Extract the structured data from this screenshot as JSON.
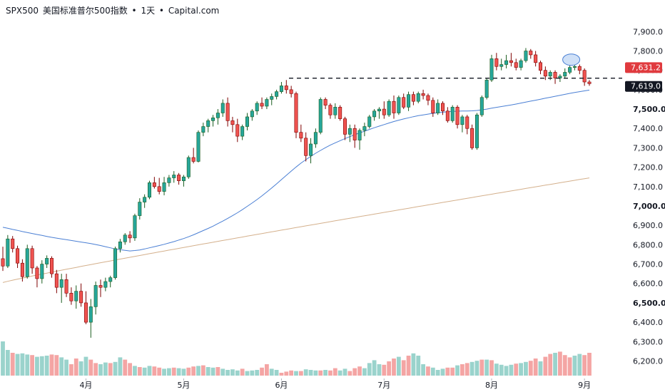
{
  "header": {
    "symbol": "SPX500",
    "name": "美国标准普尔500指数",
    "sep1": "•",
    "interval": "1天",
    "sep2": "•",
    "source": "Capital.com"
  },
  "colors": {
    "up": "#26a69a",
    "down": "#ef5350",
    "up_border": "#1b5e20",
    "down_border": "#7f0000",
    "up_vol": "#9ad3cc",
    "down_vol": "#f4a5a4",
    "ma50": "#4a7fd4",
    "ma200": "#d4b08c",
    "last_price_bg": "#e03a3e",
    "level_bg": "#131722",
    "marker": "#cfe0f7"
  },
  "chart_data": {
    "type": "candlestick",
    "price_axis": {
      "ticks": [
        "7,900.0",
        "7,800.0",
        "7,700.0",
        "7,600.0",
        "7,500.0",
        "7,400.0",
        "7,300.0",
        "7,200.0",
        "7,100.0",
        "7,000.0",
        "6,900.0",
        "6,800.0",
        "6,700.0",
        "6,600.0",
        "6,500.0",
        "6,400.0",
        "6,300.0",
        "6,200.0"
      ],
      "tick_values": [
        7900,
        7800,
        7700,
        7600,
        7500,
        7400,
        7300,
        7200,
        7100,
        7000,
        6900,
        6800,
        6700,
        6600,
        6500,
        6400,
        6300,
        6200
      ],
      "bold_ticks": [
        "7,500.0",
        "7,000.0",
        "6,500.0"
      ],
      "range": [
        6165,
        7960
      ]
    },
    "time_axis": {
      "labels": [
        "4月",
        "5月",
        "6月",
        "7月",
        "8月",
        "9月"
      ],
      "label_bar_index": [
        17,
        37,
        57,
        78,
        100,
        119
      ]
    },
    "last_price": {
      "label": "7,631.2",
      "value": 7631.2
    },
    "level_line": {
      "label": "7,619.0",
      "value": 7619
    },
    "marker_bar_index": 116,
    "candles": [
      [
        6728,
        6790,
        6665,
        6690
      ],
      [
        6690,
        6850,
        6680,
        6830
      ],
      [
        6830,
        6845,
        6760,
        6780
      ],
      [
        6780,
        6795,
        6680,
        6705
      ],
      [
        6705,
        6725,
        6610,
        6635
      ],
      [
        6635,
        6800,
        6625,
        6780
      ],
      [
        6780,
        6795,
        6650,
        6680
      ],
      [
        6680,
        6690,
        6580,
        6625
      ],
      [
        6625,
        6720,
        6600,
        6700
      ],
      [
        6700,
        6745,
        6680,
        6730
      ],
      [
        6730,
        6740,
        6630,
        6650
      ],
      [
        6650,
        6670,
        6550,
        6580
      ],
      [
        6580,
        6650,
        6500,
        6620
      ],
      [
        6620,
        6650,
        6530,
        6550
      ],
      [
        6550,
        6580,
        6490,
        6510
      ],
      [
        6510,
        6590,
        6470,
        6560
      ],
      [
        6560,
        6600,
        6480,
        6500
      ],
      [
        6500,
        6560,
        6390,
        6400
      ],
      [
        6400,
        6520,
        6320,
        6480
      ],
      [
        6480,
        6610,
        6440,
        6590
      ],
      [
        6590,
        6620,
        6530,
        6580
      ],
      [
        6580,
        6630,
        6560,
        6610
      ],
      [
        6610,
        6640,
        6580,
        6630
      ],
      [
        6630,
        6790,
        6620,
        6780
      ],
      [
        6780,
        6830,
        6760,
        6815
      ],
      [
        6815,
        6860,
        6800,
        6850
      ],
      [
        6850,
        6870,
        6810,
        6835
      ],
      [
        6835,
        6960,
        6820,
        6950
      ],
      [
        6950,
        7040,
        6930,
        7020
      ],
      [
        7020,
        7060,
        6990,
        7045
      ],
      [
        7045,
        7130,
        7035,
        7120
      ],
      [
        7120,
        7150,
        7090,
        7100
      ],
      [
        7100,
        7145,
        7060,
        7075
      ],
      [
        7075,
        7150,
        7055,
        7120
      ],
      [
        7120,
        7160,
        7100,
        7145
      ],
      [
        7145,
        7180,
        7120,
        7160
      ],
      [
        7160,
        7170,
        7110,
        7130
      ],
      [
        7130,
        7160,
        7100,
        7150
      ],
      [
        7150,
        7260,
        7140,
        7250
      ],
      [
        7250,
        7300,
        7220,
        7230
      ],
      [
        7230,
        7390,
        7225,
        7380
      ],
      [
        7380,
        7430,
        7360,
        7410
      ],
      [
        7410,
        7450,
        7380,
        7440
      ],
      [
        7440,
        7470,
        7410,
        7455
      ],
      [
        7455,
        7500,
        7420,
        7480
      ],
      [
        7480,
        7550,
        7460,
        7530
      ],
      [
        7530,
        7560,
        7410,
        7440
      ],
      [
        7440,
        7460,
        7380,
        7420
      ],
      [
        7420,
        7450,
        7330,
        7360
      ],
      [
        7360,
        7420,
        7340,
        7410
      ],
      [
        7410,
        7480,
        7390,
        7460
      ],
      [
        7460,
        7500,
        7440,
        7490
      ],
      [
        7490,
        7540,
        7470,
        7530
      ],
      [
        7530,
        7560,
        7500,
        7515
      ],
      [
        7515,
        7560,
        7500,
        7550
      ],
      [
        7550,
        7580,
        7520,
        7565
      ],
      [
        7565,
        7600,
        7550,
        7590
      ],
      [
        7590,
        7640,
        7580,
        7620
      ],
      [
        7620,
        7650,
        7580,
        7600
      ],
      [
        7600,
        7620,
        7560,
        7580
      ],
      [
        7580,
        7590,
        7350,
        7380
      ],
      [
        7380,
        7420,
        7330,
        7350
      ],
      [
        7350,
        7380,
        7230,
        7260
      ],
      [
        7260,
        7350,
        7220,
        7320
      ],
      [
        7320,
        7400,
        7300,
        7380
      ],
      [
        7380,
        7560,
        7370,
        7550
      ],
      [
        7550,
        7560,
        7500,
        7520
      ],
      [
        7520,
        7530,
        7450,
        7470
      ],
      [
        7470,
        7530,
        7450,
        7510
      ],
      [
        7510,
        7520,
        7440,
        7450
      ],
      [
        7450,
        7460,
        7340,
        7370
      ],
      [
        7370,
        7420,
        7330,
        7400
      ],
      [
        7400,
        7420,
        7300,
        7340
      ],
      [
        7340,
        7400,
        7290,
        7390
      ],
      [
        7390,
        7430,
        7360,
        7410
      ],
      [
        7410,
        7470,
        7400,
        7460
      ],
      [
        7460,
        7500,
        7440,
        7490
      ],
      [
        7490,
        7510,
        7450,
        7500
      ],
      [
        7500,
        7540,
        7450,
        7470
      ],
      [
        7470,
        7550,
        7460,
        7540
      ],
      [
        7540,
        7570,
        7450,
        7480
      ],
      [
        7480,
        7570,
        7470,
        7560
      ],
      [
        7560,
        7580,
        7500,
        7510
      ],
      [
        7510,
        7590,
        7490,
        7575
      ],
      [
        7575,
        7590,
        7520,
        7540
      ],
      [
        7540,
        7590,
        7530,
        7580
      ],
      [
        7580,
        7600,
        7550,
        7570
      ],
      [
        7570,
        7580,
        7520,
        7545
      ],
      [
        7545,
        7560,
        7460,
        7480
      ],
      [
        7480,
        7550,
        7470,
        7530
      ],
      [
        7530,
        7540,
        7470,
        7490
      ],
      [
        7490,
        7510,
        7430,
        7440
      ],
      [
        7440,
        7520,
        7430,
        7510
      ],
      [
        7510,
        7520,
        7400,
        7420
      ],
      [
        7420,
        7470,
        7380,
        7460
      ],
      [
        7460,
        7470,
        7370,
        7400
      ],
      [
        7400,
        7420,
        7290,
        7300
      ],
      [
        7300,
        7480,
        7290,
        7470
      ],
      [
        7470,
        7570,
        7460,
        7560
      ],
      [
        7560,
        7660,
        7550,
        7650
      ],
      [
        7650,
        7780,
        7640,
        7760
      ],
      [
        7760,
        7790,
        7700,
        7720
      ],
      [
        7720,
        7760,
        7700,
        7730
      ],
      [
        7730,
        7780,
        7710,
        7750
      ],
      [
        7750,
        7790,
        7720,
        7740
      ],
      [
        7740,
        7760,
        7700,
        7715
      ],
      [
        7715,
        7760,
        7700,
        7750
      ],
      [
        7750,
        7815,
        7740,
        7800
      ],
      [
        7800,
        7810,
        7760,
        7780
      ],
      [
        7780,
        7800,
        7720,
        7740
      ],
      [
        7740,
        7750,
        7680,
        7700
      ],
      [
        7700,
        7720,
        7650,
        7670
      ],
      [
        7670,
        7700,
        7650,
        7690
      ],
      [
        7690,
        7700,
        7630,
        7660
      ],
      [
        7660,
        7680,
        7640,
        7670
      ],
      [
        7670,
        7710,
        7660,
        7690
      ],
      [
        7690,
        7730,
        7680,
        7715
      ],
      [
        7715,
        7770,
        7700,
        7720
      ],
      [
        7720,
        7730,
        7680,
        7700
      ],
      [
        7700,
        7710,
        7620,
        7640
      ],
      [
        7640,
        7650,
        7620,
        7631.2
      ]
    ],
    "volume_scale_max": 160,
    "volume": [
      60,
      45,
      40,
      38,
      39,
      37,
      36,
      33,
      34,
      35,
      37,
      36,
      32,
      28,
      20,
      30,
      25,
      33,
      28,
      22,
      20,
      23,
      22,
      24,
      32,
      28,
      22,
      17,
      15,
      14,
      17,
      16,
      14,
      12,
      13,
      14,
      13,
      12,
      14,
      16,
      17,
      18,
      15,
      14,
      15,
      12,
      10,
      11,
      9,
      12,
      8,
      9,
      10,
      14,
      20,
      12,
      10,
      5,
      7,
      9,
      8,
      8,
      11,
      10,
      9,
      9,
      10,
      9,
      13,
      9,
      12,
      8,
      13,
      16,
      13,
      22,
      27,
      20,
      19,
      25,
      30,
      33,
      27,
      35,
      39,
      35,
      20,
      16,
      14,
      10,
      12,
      14,
      14,
      18,
      20,
      22,
      24,
      26,
      28,
      28,
      27,
      21,
      19,
      17,
      19,
      21,
      22,
      24,
      26,
      30,
      25,
      33,
      38,
      40,
      42,
      36,
      32,
      35,
      38,
      36,
      40
    ],
    "volume_dirs": "uuduuuduuudduudduudduuduudduduudduuduudduduuduuuuduuudduuddduduuududduuddduuuudddudduuuduuuddudduududuuuuduuddudduddduudd",
    "ma50": [
      6890,
      6885,
      6879,
      6874,
      6868,
      6863,
      6858,
      6853,
      6848,
      6843,
      6838,
      6834,
      6830,
      6826,
      6822,
      6818,
      6814,
      6810,
      6806,
      6801,
      6796,
      6790,
      6784,
      6778,
      6774,
      6771,
      6768,
      6770,
      6773,
      6778,
      6784,
      6790,
      6796,
      6802,
      6809,
      6816,
      6824,
      6832,
      6841,
      6851,
      6862,
      6873,
      6884,
      6896,
      6909,
      6922,
      6936,
      6950,
      6965,
      6981,
      6998,
      7015,
      7033,
      7052,
      7072,
      7093,
      7114,
      7136,
      7158,
      7180,
      7201,
      7221,
      7239,
      7256,
      7272,
      7287,
      7301,
      7314,
      7326,
      7337,
      7348,
      7358,
      7368,
      7377,
      7386,
      7395,
      7404,
      7412,
      7420,
      7428,
      7436,
      7443,
      7449,
      7455,
      7461,
      7466,
      7470,
      7474,
      7478,
      7481,
      7484,
      7486,
      7488,
      7489,
      7490,
      7490,
      7491,
      7493,
      7496,
      7500,
      7505,
      7509,
      7513,
      7517,
      7521,
      7526,
      7531,
      7536,
      7541,
      7546,
      7551,
      7556,
      7561,
      7566,
      7571,
      7576,
      7581,
      7586,
      7590,
      7594,
      7598
    ]
  }
}
